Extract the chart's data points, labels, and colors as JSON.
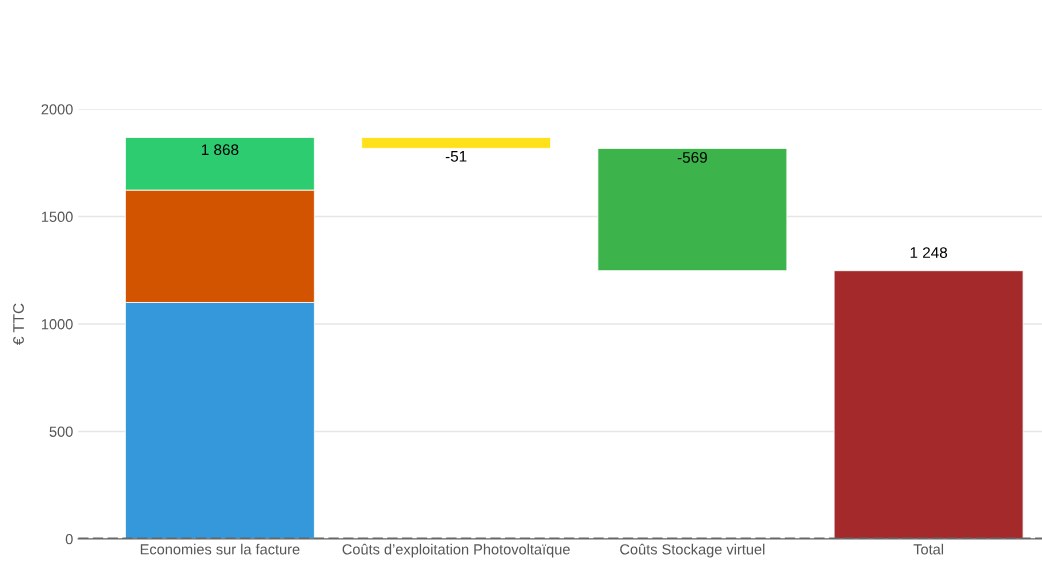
{
  "chart_data": {
    "type": "bar",
    "stacked": true,
    "ylabel": "€ TTC",
    "categories": [
      "Economies sur la facture",
      "Coûts d’exploitation Photovoltaïque",
      "Coûts Stockage virtuel",
      "Total"
    ],
    "series": [
      {
        "color": "#3498db",
        "values": [
          1100,
          null,
          null,
          null
        ]
      },
      {
        "color": "#d35400",
        "values": [
          523,
          null,
          null,
          null
        ]
      },
      {
        "color": "#2ecc71",
        "values": [
          245,
          null,
          null,
          null
        ]
      },
      {
        "color": "#ffe119",
        "values": [
          null,
          -51,
          null,
          null
        ],
        "base": [
          null,
          1868,
          null,
          null
        ],
        "value_labels": [
          null,
          "-51",
          null,
          null
        ]
      },
      {
        "color": "#3cb44b",
        "values": [
          null,
          null,
          -569,
          null
        ],
        "base": [
          null,
          null,
          1817,
          null
        ],
        "value_labels": [
          null,
          null,
          "-569",
          null
        ]
      },
      {
        "color": "#a4292b",
        "values": [
          null,
          null,
          null,
          1248
        ],
        "value_labels": [
          null,
          null,
          null,
          "1 248"
        ]
      }
    ],
    "totals": [
      "1 868",
      null,
      null,
      null
    ],
    "ylim": [
      0,
      2000
    ],
    "yticks": [
      0,
      500,
      1000,
      1500,
      2000
    ],
    "grid": "y",
    "ref_lines": [
      {
        "axis": "y",
        "value": 0,
        "color": "#666666",
        "line_style": "dashed"
      }
    ]
  }
}
